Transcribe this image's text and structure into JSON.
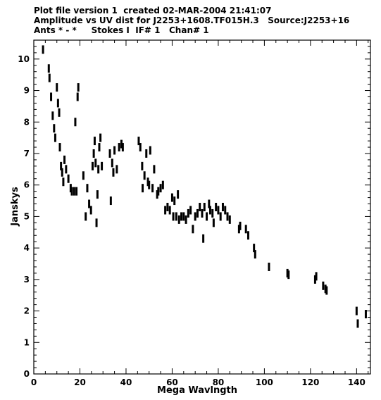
{
  "header": {
    "line1": "Plot file version 1  created 02-MAR-2004 21:41:07",
    "line2": "Amplitude vs UV dist for J2253+1608.TF015H.3   Source:J2253+16",
    "line3": "Ants * - *     Stokes I  IF# 1   Chan# 1"
  },
  "chart_data": {
    "type": "scatter",
    "xlabel": "Mega Wavlngth",
    "ylabel": "Janskys",
    "xlim": [
      0,
      146
    ],
    "ylim": [
      0,
      10.6
    ],
    "x_ticks": [
      "0",
      "20",
      "40",
      "60",
      "80",
      "100",
      "120",
      "140"
    ],
    "y_ticks": [
      "0",
      "1",
      "2",
      "3",
      "4",
      "5",
      "6",
      "7",
      "8",
      "9",
      "10"
    ],
    "grid": false,
    "legend": "none",
    "marker_color": "#000000",
    "series": [
      {
        "points": [
          [
            4.0,
            10.3
          ],
          [
            6.5,
            9.7
          ],
          [
            6.8,
            9.4
          ],
          [
            7.5,
            8.8
          ],
          [
            8.2,
            8.2
          ],
          [
            8.8,
            7.8
          ],
          [
            9.3,
            7.5
          ],
          [
            10.0,
            9.1
          ],
          [
            10.5,
            8.6
          ],
          [
            11.0,
            8.3
          ],
          [
            11.3,
            7.2
          ],
          [
            11.8,
            6.6
          ],
          [
            12.3,
            6.4
          ],
          [
            12.8,
            6.1
          ],
          [
            13.3,
            6.8
          ],
          [
            14.0,
            6.5
          ],
          [
            15.0,
            6.2
          ],
          [
            16.0,
            5.9
          ],
          [
            16.5,
            5.8
          ],
          [
            17.5,
            5.8
          ],
          [
            18.5,
            5.8
          ],
          [
            18.0,
            8.0
          ],
          [
            19.0,
            8.8
          ],
          [
            19.3,
            9.1
          ],
          [
            21.5,
            6.3
          ],
          [
            22.5,
            5.0
          ],
          [
            23.2,
            5.9
          ],
          [
            24.0,
            5.4
          ],
          [
            24.8,
            5.2
          ],
          [
            25.5,
            6.6
          ],
          [
            26.0,
            7.0
          ],
          [
            26.4,
            7.4
          ],
          [
            26.8,
            6.7
          ],
          [
            27.2,
            4.8
          ],
          [
            27.6,
            5.7
          ],
          [
            28.0,
            6.5
          ],
          [
            28.4,
            7.2
          ],
          [
            28.9,
            7.5
          ],
          [
            29.5,
            6.6
          ],
          [
            33.0,
            7.0
          ],
          [
            33.4,
            5.5
          ],
          [
            34.0,
            6.7
          ],
          [
            34.5,
            6.4
          ],
          [
            35.0,
            7.1
          ],
          [
            36.0,
            6.5
          ],
          [
            37.0,
            7.2
          ],
          [
            38.0,
            7.3
          ],
          [
            38.6,
            7.2
          ],
          [
            45.5,
            7.4
          ],
          [
            46.2,
            7.2
          ],
          [
            47.0,
            6.6
          ],
          [
            47.2,
            5.9
          ],
          [
            48.0,
            6.3
          ],
          [
            48.8,
            7.0
          ],
          [
            49.5,
            6.1
          ],
          [
            50.0,
            6.0
          ],
          [
            50.5,
            7.1
          ],
          [
            51.5,
            5.9
          ],
          [
            52.2,
            6.5
          ],
          [
            53.5,
            5.7
          ],
          [
            54.0,
            5.8
          ],
          [
            55.0,
            5.9
          ],
          [
            56.0,
            6.0
          ],
          [
            57.0,
            5.2
          ],
          [
            58.0,
            5.3
          ],
          [
            59.0,
            5.2
          ],
          [
            60.0,
            5.6
          ],
          [
            60.5,
            5.0
          ],
          [
            61.0,
            5.5
          ],
          [
            61.8,
            5.0
          ],
          [
            62.5,
            5.7
          ],
          [
            63.0,
            4.9
          ],
          [
            64.0,
            5.0
          ],
          [
            65.0,
            5.0
          ],
          [
            66.0,
            4.9
          ],
          [
            67.0,
            5.1
          ],
          [
            68.0,
            5.2
          ],
          [
            69.0,
            4.6
          ],
          [
            70.0,
            5.0
          ],
          [
            71.0,
            5.1
          ],
          [
            72.0,
            5.3
          ],
          [
            73.0,
            5.1
          ],
          [
            73.5,
            4.3
          ],
          [
            74.0,
            5.3
          ],
          [
            75.0,
            5.0
          ],
          [
            76.0,
            5.4
          ],
          [
            76.5,
            5.2
          ],
          [
            77.5,
            5.1
          ],
          [
            78.0,
            4.8
          ],
          [
            79.0,
            5.3
          ],
          [
            80.0,
            5.2
          ],
          [
            81.0,
            5.0
          ],
          [
            82.0,
            5.3
          ],
          [
            83.0,
            5.2
          ],
          [
            84.0,
            5.0
          ],
          [
            85.0,
            4.9
          ],
          [
            89.0,
            4.6
          ],
          [
            89.5,
            4.7
          ],
          [
            92.0,
            4.6
          ],
          [
            93.0,
            4.4
          ],
          [
            95.5,
            4.0
          ],
          [
            96.0,
            3.8
          ],
          [
            102.0,
            3.4
          ],
          [
            110.0,
            3.2
          ],
          [
            110.5,
            3.15
          ],
          [
            122.0,
            3.0
          ],
          [
            122.5,
            3.1
          ],
          [
            125.5,
            2.8
          ],
          [
            126.5,
            2.7
          ],
          [
            127.0,
            2.65
          ],
          [
            140.0,
            2.0
          ],
          [
            140.5,
            1.6
          ],
          [
            144.0,
            1.9
          ]
        ]
      }
    ]
  }
}
